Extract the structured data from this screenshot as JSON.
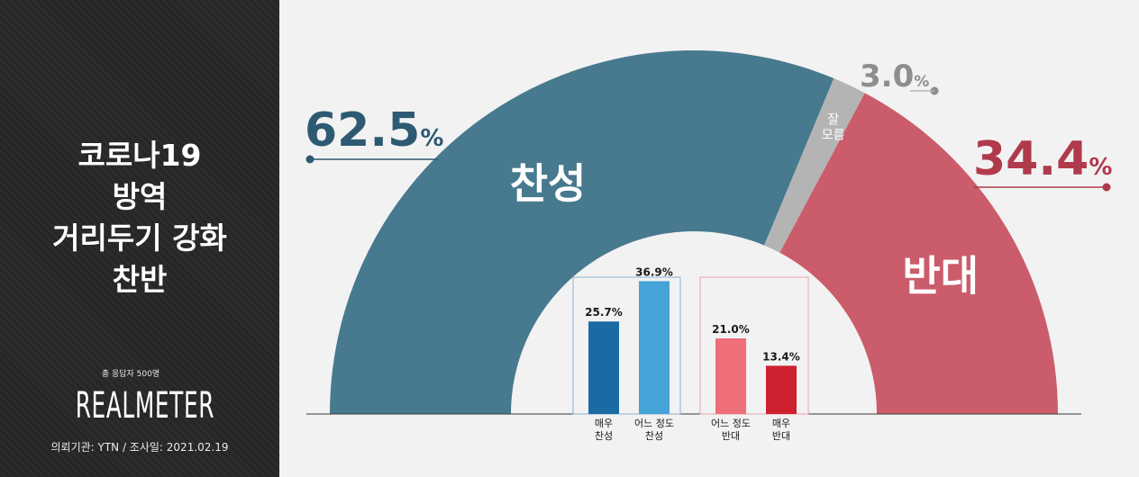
{
  "sidebar": {
    "title_lines": [
      "코로나19",
      "방역",
      "거리두기 강화",
      "찬반"
    ],
    "respondents": "총 응답자 500명",
    "logo_text": "REALMETER",
    "footer": "의뢰기관: YTN  /  조사일: 2021.02.19"
  },
  "chart_data": {
    "type": "pie",
    "subtype": "semicircle-donut",
    "slices": [
      {
        "name": "찬성",
        "value": 62.5,
        "color": "#47798f",
        "value_color": "#2d5a72"
      },
      {
        "name": "잘 모름",
        "value": 3.0,
        "color": "#b4b4b4",
        "value_color": "#8e8e8e"
      },
      {
        "name": "반대",
        "value": 34.4,
        "color": "#cb5c6b",
        "value_color": "#b03a4c"
      }
    ],
    "value_labels": [
      "62.5",
      "3.0",
      "34.4"
    ],
    "percent_sign": "%",
    "inner_bars": {
      "type": "bar",
      "ylim": [
        0,
        40
      ],
      "categories": [
        "매우 찬성",
        "어느 정도 찬성",
        "어느 정도 반대",
        "매우 반대"
      ],
      "category_lines": [
        [
          "매우",
          "찬성"
        ],
        [
          "어느 정도",
          "찬성"
        ],
        [
          "어느 정도",
          "반대"
        ],
        [
          "매우",
          "반대"
        ]
      ],
      "values": [
        25.7,
        36.9,
        21.0,
        13.4
      ],
      "value_labels": [
        "25.7%",
        "36.9%",
        "21.0%",
        "13.4%"
      ],
      "colors": [
        "#1a6aa4",
        "#45a3d8",
        "#ee6f7a",
        "#cf2030"
      ]
    }
  }
}
